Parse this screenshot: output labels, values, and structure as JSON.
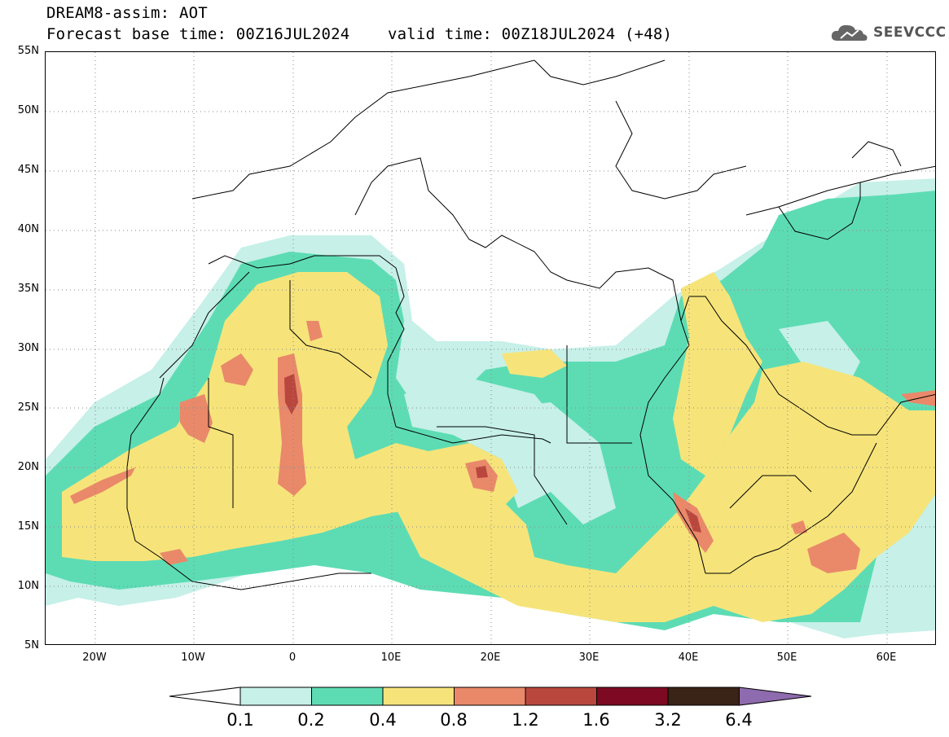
{
  "header": {
    "title_line1": "DREAM8-assim: AOT",
    "base_time": "Forecast base time: 00Z16JUL2024",
    "valid_time": "valid time: 00Z18JUL2024 (+48)"
  },
  "logo": {
    "text": "SEEVCCC",
    "icon": "cloud-icon"
  },
  "map": {
    "lat_labels": [
      "55N",
      "50N",
      "45N",
      "40N",
      "35N",
      "30N",
      "25N",
      "20N",
      "15N",
      "10N",
      "5N"
    ],
    "lon_labels": [
      "20W",
      "10W",
      "0",
      "10E",
      "20E",
      "30E",
      "40E",
      "50E",
      "60E"
    ],
    "lon_range": [
      -25,
      65
    ],
    "lat_range": [
      5,
      55
    ]
  },
  "colorbar": {
    "labels": [
      "0.1",
      "0.2",
      "0.4",
      "0.8",
      "1.2",
      "1.6",
      "3.2",
      "6.4"
    ],
    "colors": [
      "#c6f0e8",
      "#5ddcb4",
      "#f6e47a",
      "#e9896a",
      "#b9473e",
      "#7d0a22",
      "#3a2317",
      "#8e6aae"
    ]
  }
}
